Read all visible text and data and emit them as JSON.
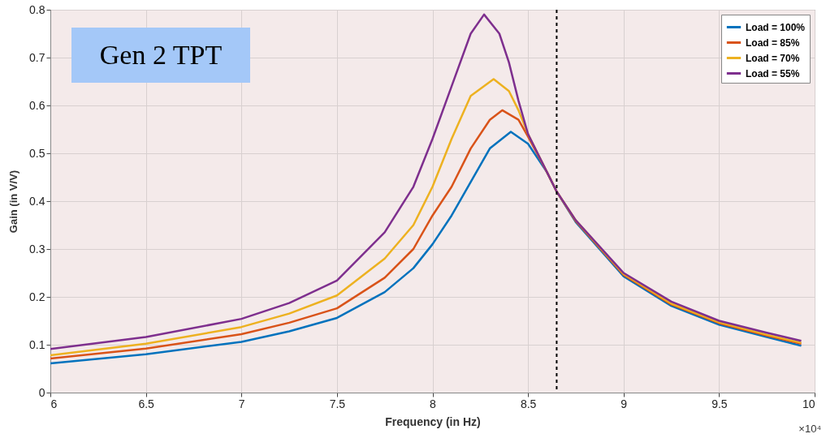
{
  "chart_data": {
    "type": "line",
    "xlabel": "Frequency (in Hz)",
    "ylabel": "Gain (in V/V)",
    "xlim": [
      6,
      10
    ],
    "ylim": [
      0,
      0.8
    ],
    "xticks": [
      6,
      6.5,
      7,
      7.5,
      8,
      8.5,
      9,
      9.5,
      10
    ],
    "yticks": [
      0,
      0.1,
      0.2,
      0.3,
      0.4,
      0.5,
      0.6,
      0.7,
      0.8
    ],
    "grid": true,
    "legend": "top right",
    "annotations": [
      "Gen 2 TPT",
      "×10⁴"
    ],
    "ref_lines": [
      {
        "axis": "x",
        "value": 8.65,
        "color": "#000000",
        "line_style": "dashed"
      }
    ],
    "series": [
      {
        "name": "Load = 100%",
        "color": "#0072bd",
        "x": [
          6,
          6.5,
          7,
          7.25,
          7.5,
          7.75,
          7.9,
          8,
          8.1,
          8.2,
          8.3,
          8.41,
          8.5,
          8.6,
          8.65,
          8.75,
          9,
          9.25,
          9.5,
          9.75,
          9.93
        ],
        "values": [
          0.061,
          0.08,
          0.106,
          0.128,
          0.156,
          0.21,
          0.26,
          0.31,
          0.37,
          0.44,
          0.51,
          0.545,
          0.52,
          0.46,
          0.42,
          0.356,
          0.243,
          0.181,
          0.142,
          0.116,
          0.098
        ]
      },
      {
        "name": "Load = 85%",
        "color": "#d95319",
        "x": [
          6,
          6.5,
          7,
          7.25,
          7.5,
          7.75,
          7.9,
          8,
          8.1,
          8.2,
          8.3,
          8.365,
          8.45,
          8.5,
          8.6,
          8.65,
          8.75,
          9,
          9.25,
          9.5,
          9.75,
          9.93
        ],
        "values": [
          0.071,
          0.092,
          0.122,
          0.146,
          0.176,
          0.24,
          0.3,
          0.37,
          0.43,
          0.51,
          0.57,
          0.59,
          0.57,
          0.535,
          0.46,
          0.42,
          0.358,
          0.246,
          0.184,
          0.145,
          0.119,
          0.102
        ]
      },
      {
        "name": "Load = 70%",
        "color": "#edb120",
        "x": [
          6,
          6.5,
          7,
          7.25,
          7.5,
          7.75,
          7.9,
          8,
          8.1,
          8.2,
          8.32,
          8.4,
          8.45,
          8.5,
          8.6,
          8.65,
          8.75,
          9,
          9.25,
          9.5,
          9.75,
          9.93
        ],
        "values": [
          0.078,
          0.102,
          0.137,
          0.165,
          0.203,
          0.28,
          0.35,
          0.43,
          0.53,
          0.62,
          0.655,
          0.63,
          0.59,
          0.54,
          0.46,
          0.42,
          0.36,
          0.248,
          0.186,
          0.147,
          0.121,
          0.104
        ]
      },
      {
        "name": "Load = 55%",
        "color": "#7e2f8e",
        "x": [
          6,
          6.5,
          7,
          7.25,
          7.5,
          7.75,
          7.9,
          8,
          8.1,
          8.2,
          8.27,
          8.35,
          8.4,
          8.45,
          8.5,
          8.6,
          8.65,
          8.75,
          9,
          9.25,
          9.5,
          9.75,
          9.93
        ],
        "values": [
          0.091,
          0.116,
          0.154,
          0.187,
          0.234,
          0.335,
          0.43,
          0.53,
          0.64,
          0.75,
          0.79,
          0.75,
          0.69,
          0.61,
          0.54,
          0.46,
          0.42,
          0.36,
          0.25,
          0.19,
          0.15,
          0.125,
          0.108
        ]
      }
    ]
  }
}
